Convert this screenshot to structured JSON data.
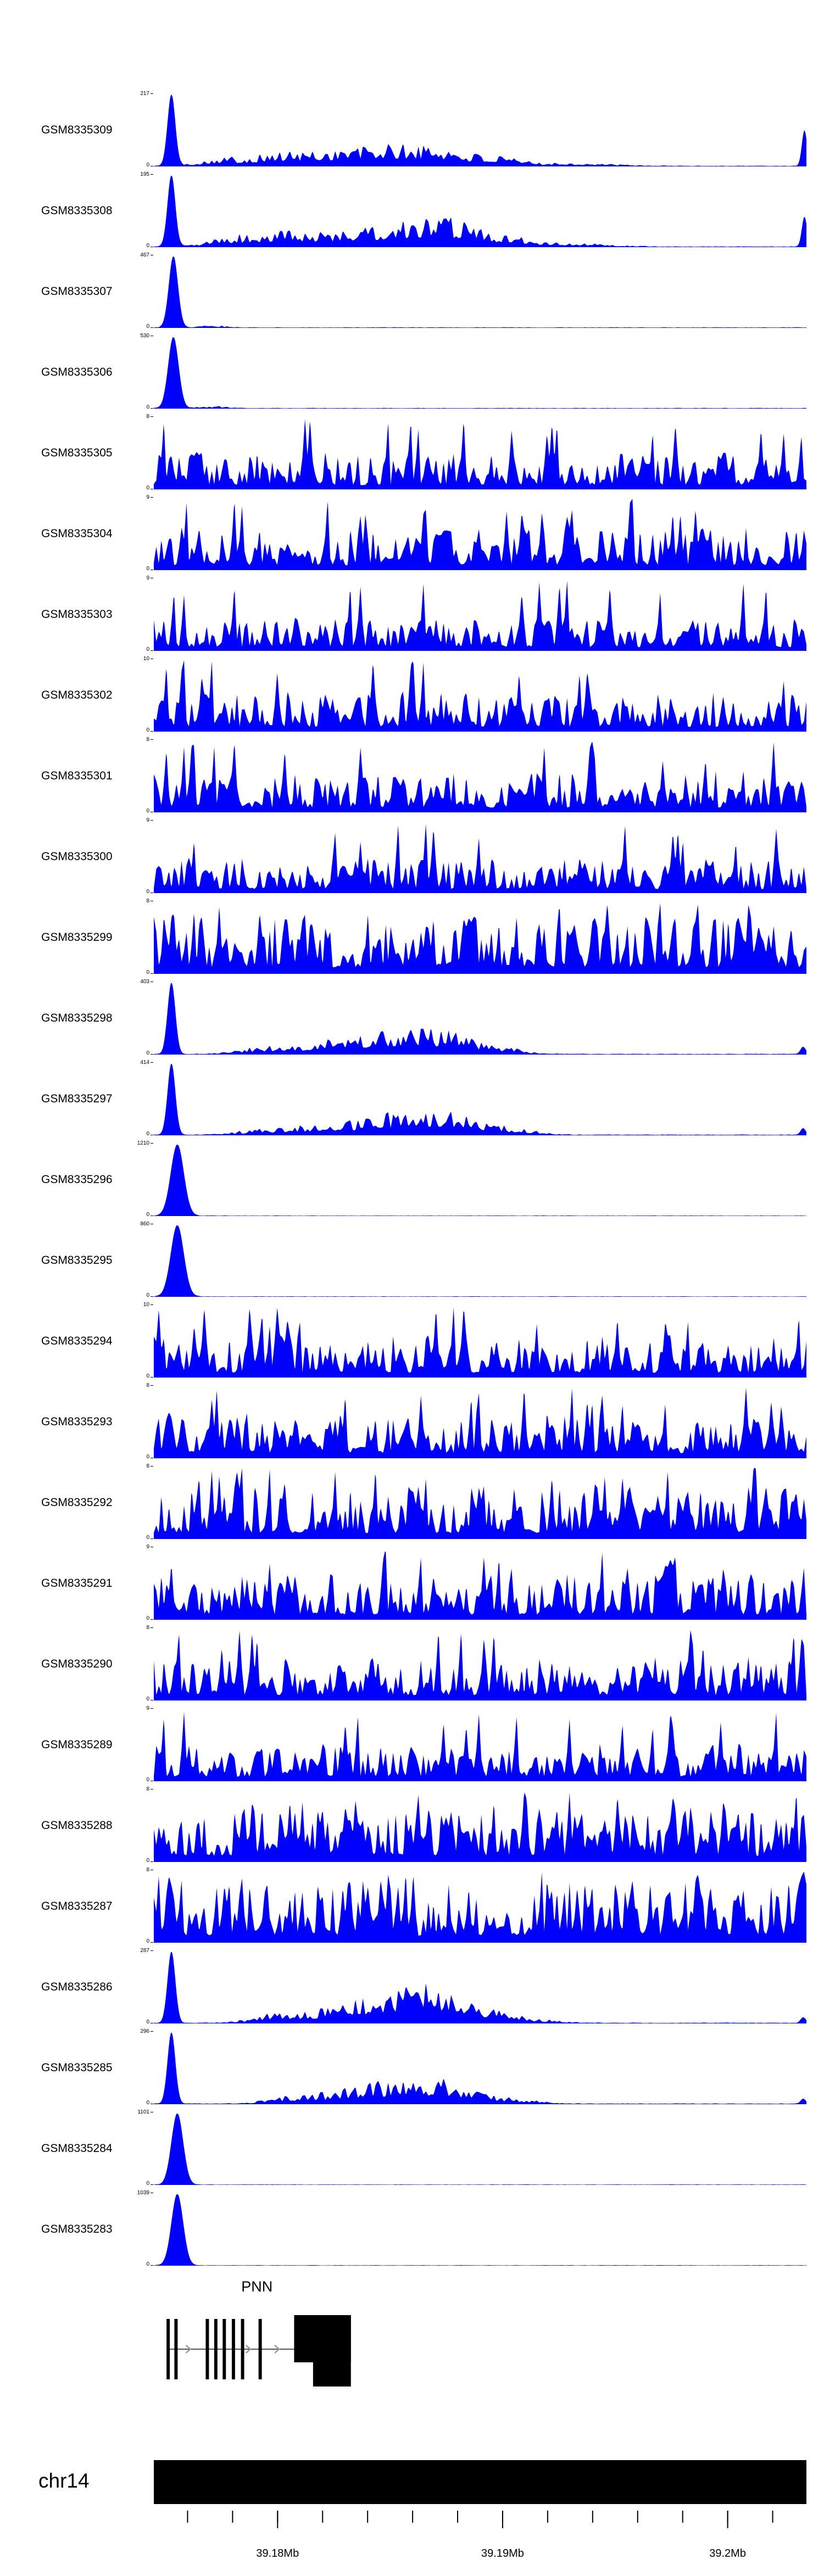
{
  "figure": {
    "background": "#ffffff",
    "signal_color": "#0000ff",
    "gene_color": "#000000",
    "axis_color": "#000000",
    "arrow_color": "#9a9a9a",
    "intron_color": "#555555"
  },
  "chart_data": {
    "type": "area",
    "description": "Genome browser read-coverage tracks over chr14 PNN locus",
    "tracks": [
      {
        "label": "GSM8335309",
        "ymin": 0,
        "ymax": 217,
        "kind": "peaks",
        "seed": 101,
        "base": 0.006,
        "peaks": [
          {
            "x": 0.027,
            "h": 1,
            "w": 0.006
          },
          {
            "x": 0.1,
            "h": 0.07,
            "w": 0.03
          },
          {
            "x": 0.18,
            "h": 0.1,
            "w": 0.04
          },
          {
            "x": 0.27,
            "h": 0.13,
            "w": 0.05
          },
          {
            "x": 0.36,
            "h": 0.16,
            "w": 0.05
          },
          {
            "x": 0.44,
            "h": 0.14,
            "w": 0.04
          },
          {
            "x": 0.52,
            "h": 0.07,
            "w": 0.04
          },
          {
            "x": 0.63,
            "h": 0.03,
            "w": 0.06
          },
          {
            "x": 0.997,
            "h": 0.5,
            "w": 0.004
          }
        ]
      },
      {
        "label": "GSM8335308",
        "ymin": 0,
        "ymax": 195,
        "kind": "peaks",
        "seed": 102,
        "base": 0.006,
        "peaks": [
          {
            "x": 0.027,
            "h": 1,
            "w": 0.006
          },
          {
            "x": 0.12,
            "h": 0.09,
            "w": 0.035
          },
          {
            "x": 0.2,
            "h": 0.12,
            "w": 0.04
          },
          {
            "x": 0.3,
            "h": 0.15,
            "w": 0.05
          },
          {
            "x": 0.4,
            "h": 0.2,
            "w": 0.05
          },
          {
            "x": 0.47,
            "h": 0.16,
            "w": 0.04
          },
          {
            "x": 0.55,
            "h": 0.08,
            "w": 0.04
          },
          {
            "x": 0.65,
            "h": 0.03,
            "w": 0.05
          },
          {
            "x": 0.997,
            "h": 0.42,
            "w": 0.004
          }
        ]
      },
      {
        "label": "GSM8335307",
        "ymin": 0,
        "ymax": 467,
        "kind": "peaks",
        "seed": 103,
        "base": 0.005,
        "peaks": [
          {
            "x": 0.03,
            "h": 1,
            "w": 0.007
          },
          {
            "x": 0.09,
            "h": 0.02,
            "w": 0.02
          }
        ]
      },
      {
        "label": "GSM8335306",
        "ymin": 0,
        "ymax": 530,
        "kind": "peaks",
        "seed": 104,
        "base": 0.005,
        "peaks": [
          {
            "x": 0.03,
            "h": 1,
            "w": 0.008
          },
          {
            "x": 0.09,
            "h": 0.02,
            "w": 0.02
          }
        ]
      },
      {
        "label": "GSM8335305",
        "ymin": 0,
        "ymax": 8,
        "kind": "noisy",
        "seed": 105,
        "mean": 0.3,
        "spikes": 16
      },
      {
        "label": "GSM8335304",
        "ymin": 0,
        "ymax": 9,
        "kind": "noisy",
        "seed": 106,
        "mean": 0.34,
        "spikes": 18
      },
      {
        "label": "GSM8335303",
        "ymin": 0,
        "ymax": 9,
        "kind": "noisy",
        "seed": 107,
        "mean": 0.26,
        "spikes": 14
      },
      {
        "label": "GSM8335302",
        "ymin": 0,
        "ymax": 10,
        "kind": "noisy",
        "seed": 108,
        "mean": 0.32,
        "spikes": 16
      },
      {
        "label": "GSM8335301",
        "ymin": 0,
        "ymax": 8,
        "kind": "noisy",
        "seed": 109,
        "mean": 0.33,
        "spikes": 15
      },
      {
        "label": "GSM8335300",
        "ymin": 0,
        "ymax": 9,
        "kind": "noisy",
        "seed": 110,
        "mean": 0.28,
        "spikes": 14
      },
      {
        "label": "GSM8335299",
        "ymin": 0,
        "ymax": 8,
        "kind": "noisy",
        "seed": 111,
        "mean": 0.45,
        "spikes": 18
      },
      {
        "label": "GSM8335298",
        "ymin": 0,
        "ymax": 403,
        "kind": "peaks",
        "seed": 112,
        "base": 0.006,
        "peaks": [
          {
            "x": 0.027,
            "h": 1,
            "w": 0.006
          },
          {
            "x": 0.16,
            "h": 0.06,
            "w": 0.035
          },
          {
            "x": 0.25,
            "h": 0.1,
            "w": 0.04
          },
          {
            "x": 0.33,
            "h": 0.13,
            "w": 0.045
          },
          {
            "x": 0.4,
            "h": 0.16,
            "w": 0.045
          },
          {
            "x": 0.46,
            "h": 0.13,
            "w": 0.04
          },
          {
            "x": 0.53,
            "h": 0.06,
            "w": 0.035
          },
          {
            "x": 0.995,
            "h": 0.1,
            "w": 0.004
          }
        ]
      },
      {
        "label": "GSM8335297",
        "ymin": 0,
        "ymax": 414,
        "kind": "peaks",
        "seed": 113,
        "base": 0.006,
        "peaks": [
          {
            "x": 0.027,
            "h": 1,
            "w": 0.006
          },
          {
            "x": 0.17,
            "h": 0.06,
            "w": 0.035
          },
          {
            "x": 0.26,
            "h": 0.1,
            "w": 0.04
          },
          {
            "x": 0.35,
            "h": 0.14,
            "w": 0.045
          },
          {
            "x": 0.42,
            "h": 0.16,
            "w": 0.045
          },
          {
            "x": 0.48,
            "h": 0.11,
            "w": 0.04
          },
          {
            "x": 0.55,
            "h": 0.05,
            "w": 0.035
          },
          {
            "x": 0.995,
            "h": 0.09,
            "w": 0.004
          }
        ]
      },
      {
        "label": "GSM8335296",
        "ymin": 0,
        "ymax": 1210,
        "kind": "peaks",
        "seed": 114,
        "base": 0.004,
        "peaks": [
          {
            "x": 0.036,
            "h": 1,
            "w": 0.01
          }
        ]
      },
      {
        "label": "GSM8335295",
        "ymin": 0,
        "ymax": 860,
        "kind": "peaks",
        "seed": 115,
        "base": 0.004,
        "peaks": [
          {
            "x": 0.036,
            "h": 1,
            "w": 0.01
          }
        ]
      },
      {
        "label": "GSM8335294",
        "ymin": 0,
        "ymax": 10,
        "kind": "noisy",
        "seed": 116,
        "mean": 0.34,
        "spikes": 17
      },
      {
        "label": "GSM8335293",
        "ymin": 0,
        "ymax": 8,
        "kind": "noisy",
        "seed": 117,
        "mean": 0.36,
        "spikes": 18
      },
      {
        "label": "GSM8335292",
        "ymin": 0,
        "ymax": 8,
        "kind": "noisy",
        "seed": 118,
        "mean": 0.42,
        "spikes": 18
      },
      {
        "label": "GSM8335291",
        "ymin": 0,
        "ymax": 9,
        "kind": "noisy",
        "seed": 119,
        "mean": 0.36,
        "spikes": 17
      },
      {
        "label": "GSM8335290",
        "ymin": 0,
        "ymax": 8,
        "kind": "noisy",
        "seed": 120,
        "mean": 0.34,
        "spikes": 16
      },
      {
        "label": "GSM8335289",
        "ymin": 0,
        "ymax": 9,
        "kind": "noisy",
        "seed": 121,
        "mean": 0.3,
        "spikes": 15
      },
      {
        "label": "GSM8335288",
        "ymin": 0,
        "ymax": 8,
        "kind": "noisy",
        "seed": 122,
        "mean": 0.42,
        "spikes": 18
      },
      {
        "label": "GSM8335287",
        "ymin": 0,
        "ymax": 8,
        "kind": "noisy",
        "seed": 123,
        "mean": 0.5,
        "spikes": 20
      },
      {
        "label": "GSM8335286",
        "ymin": 0,
        "ymax": 287,
        "kind": "peaks",
        "seed": 124,
        "base": 0.006,
        "peaks": [
          {
            "x": 0.027,
            "h": 1,
            "w": 0.006
          },
          {
            "x": 0.2,
            "h": 0.1,
            "w": 0.04
          },
          {
            "x": 0.3,
            "h": 0.16,
            "w": 0.045
          },
          {
            "x": 0.38,
            "h": 0.24,
            "w": 0.045
          },
          {
            "x": 0.44,
            "h": 0.22,
            "w": 0.04
          },
          {
            "x": 0.5,
            "h": 0.1,
            "w": 0.04
          },
          {
            "x": 0.57,
            "h": 0.04,
            "w": 0.04
          },
          {
            "x": 0.995,
            "h": 0.08,
            "w": 0.004
          }
        ]
      },
      {
        "label": "GSM8335285",
        "ymin": 0,
        "ymax": 296,
        "kind": "peaks",
        "seed": 125,
        "base": 0.006,
        "peaks": [
          {
            "x": 0.027,
            "h": 1,
            "w": 0.006
          },
          {
            "x": 0.22,
            "h": 0.08,
            "w": 0.04
          },
          {
            "x": 0.32,
            "h": 0.14,
            "w": 0.045
          },
          {
            "x": 0.4,
            "h": 0.18,
            "w": 0.045
          },
          {
            "x": 0.46,
            "h": 0.12,
            "w": 0.04
          },
          {
            "x": 0.54,
            "h": 0.05,
            "w": 0.04
          },
          {
            "x": 0.995,
            "h": 0.07,
            "w": 0.004
          }
        ]
      },
      {
        "label": "GSM8335284",
        "ymin": 0,
        "ymax": 1101,
        "kind": "peaks",
        "seed": 126,
        "base": 0.004,
        "peaks": [
          {
            "x": 0.036,
            "h": 1,
            "w": 0.009
          }
        ]
      },
      {
        "label": "GSM8335283",
        "ymin": 0,
        "ymax": 1039,
        "kind": "peaks",
        "seed": 127,
        "base": 0.004,
        "peaks": [
          {
            "x": 0.036,
            "h": 1,
            "w": 0.009
          }
        ]
      }
    ],
    "gene_track": {
      "gene": "PNN",
      "strand": "right",
      "label_frac": 0.158,
      "intron_span": [
        0.02,
        0.302
      ],
      "exons": [
        0.022,
        0.034,
        0.082,
        0.095,
        0.108,
        0.122,
        0.136,
        0.163
      ],
      "exon_width_frac": 0.005,
      "arrows": [
        0.056,
        0.148,
        0.192
      ],
      "big_exon": {
        "start": 0.215,
        "end": 0.302,
        "notch": 0.244
      }
    },
    "x_axis": {
      "chromosome": "chr14",
      "range_mb": [
        39.1745,
        39.2035
      ],
      "major_ticks": [
        {
          "pos_mb": 39.18,
          "label": "39.18Mb"
        },
        {
          "pos_mb": 39.19,
          "label": "39.19Mb"
        },
        {
          "pos_mb": 39.2,
          "label": "39.2Mb"
        }
      ],
      "minor_ticks_mb": [
        39.176,
        39.178,
        39.18,
        39.182,
        39.184,
        39.186,
        39.188,
        39.19,
        39.192,
        39.194,
        39.196,
        39.198,
        39.2,
        39.202
      ]
    }
  }
}
